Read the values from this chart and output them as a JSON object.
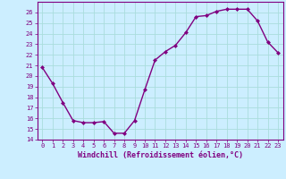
{
  "x": [
    0,
    1,
    2,
    3,
    4,
    5,
    6,
    7,
    8,
    9,
    10,
    11,
    12,
    13,
    14,
    15,
    16,
    17,
    18,
    19,
    20,
    21,
    22,
    23
  ],
  "y": [
    20.8,
    19.3,
    17.5,
    15.8,
    15.6,
    15.6,
    15.7,
    14.6,
    14.6,
    15.8,
    18.7,
    21.5,
    22.3,
    22.9,
    24.1,
    25.6,
    25.7,
    26.1,
    26.3,
    26.3,
    26.3,
    25.2,
    23.2,
    22.2
  ],
  "line_color": "#800080",
  "marker": "D",
  "marker_size": 2.0,
  "bg_color": "#cceeff",
  "grid_color": "#aadddd",
  "xlabel": "Windchill (Refroidissement éolien,°C)",
  "xlabel_color": "#800080",
  "tick_color": "#800080",
  "ylim": [
    14,
    27
  ],
  "xlim": [
    -0.5,
    23.5
  ],
  "yticks": [
    14,
    15,
    16,
    17,
    18,
    19,
    20,
    21,
    22,
    23,
    24,
    25,
    26
  ],
  "xticks": [
    0,
    1,
    2,
    3,
    4,
    5,
    6,
    7,
    8,
    9,
    10,
    11,
    12,
    13,
    14,
    15,
    16,
    17,
    18,
    19,
    20,
    21,
    22,
    23
  ],
  "spine_color": "#800080",
  "linewidth": 1.0,
  "tick_fontsize": 5.0,
  "xlabel_fontsize": 6.0
}
